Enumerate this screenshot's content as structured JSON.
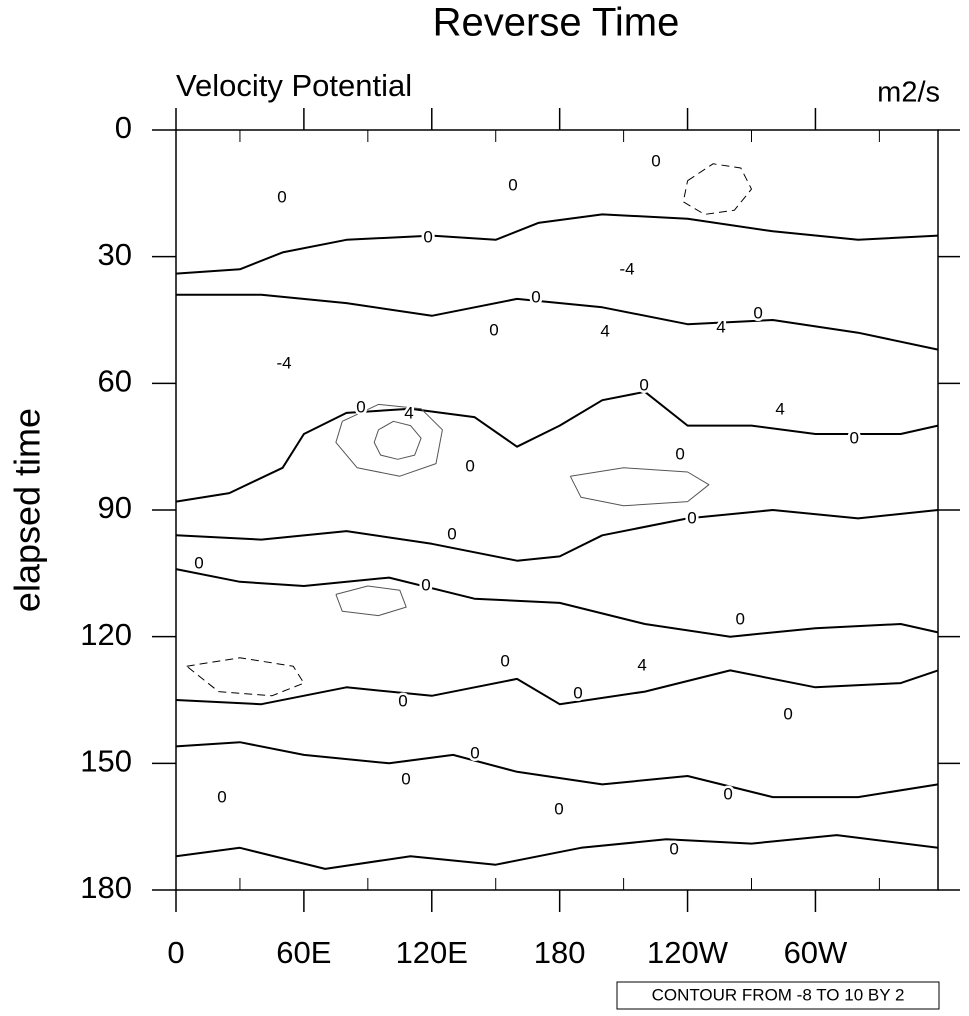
{
  "chart_data": {
    "type": "contour",
    "title": "Reverse Time",
    "left_label": "Velocity Potential",
    "right_label": "m2/s",
    "y_label": "elapsed time",
    "contour_info": "CONTOUR FROM -8 TO 10 BY 2",
    "xlim": [
      0,
      357.5
    ],
    "ylim": [
      0,
      180
    ],
    "y_reversed": true,
    "xticks": [
      0,
      {
        "value": 60,
        "label": "60E"
      },
      {
        "value": 120,
        "label": "120E"
      },
      180,
      {
        "value": 240,
        "label": "120W"
      },
      {
        "value": 300,
        "label": "60W"
      }
    ],
    "xminorticks": [
      30,
      90,
      150,
      210,
      270,
      330
    ],
    "yticks": [
      0,
      30,
      60,
      90,
      120,
      150,
      180
    ],
    "color": "#000000",
    "contours": [
      {
        "level": 0,
        "lon": [
          0,
          30,
          50,
          80,
          120,
          150,
          170,
          200,
          240,
          280,
          320,
          357.5
        ],
        "time": [
          34,
          33,
          29,
          26,
          25,
          26,
          22,
          20,
          21,
          24,
          26,
          25
        ]
      },
      {
        "level": 0,
        "lon": [
          0,
          40,
          80,
          120,
          160,
          200,
          240,
          280,
          320,
          357.5
        ],
        "time": [
          39,
          39,
          41,
          44,
          40,
          42,
          46,
          45,
          48,
          52
        ]
      },
      {
        "level": 0,
        "lon": [
          0,
          25,
          50,
          60,
          80,
          110,
          140,
          160,
          180,
          200,
          220,
          240,
          270,
          300,
          340,
          357.5
        ],
        "time": [
          88,
          86,
          80,
          72,
          67,
          66,
          68,
          75,
          70,
          64,
          62,
          70,
          70,
          72,
          72,
          70
        ]
      },
      {
        "level": 0,
        "lon": [
          0,
          40,
          80,
          120,
          160,
          180,
          200,
          240,
          280,
          320,
          357.5
        ],
        "time": [
          96,
          97,
          95,
          98,
          102,
          101,
          96,
          92,
          90,
          92,
          90
        ]
      },
      {
        "level": 0,
        "lon": [
          0,
          30,
          60,
          100,
          140,
          180,
          220,
          260,
          300,
          340,
          357.5
        ],
        "time": [
          104,
          107,
          108,
          106,
          111,
          112,
          117,
          120,
          118,
          117,
          119
        ]
      },
      {
        "level": 0,
        "lon": [
          0,
          40,
          80,
          120,
          160,
          180,
          220,
          260,
          300,
          340,
          357.5
        ],
        "time": [
          135,
          136,
          132,
          134,
          130,
          136,
          133,
          128,
          132,
          131,
          128
        ]
      },
      {
        "level": 0,
        "lon": [
          0,
          30,
          60,
          100,
          130,
          160,
          200,
          240,
          280,
          320,
          357.5
        ],
        "time": [
          146,
          145,
          148,
          150,
          148,
          152,
          155,
          153,
          158,
          158,
          155
        ]
      },
      {
        "level": 0,
        "lon": [
          0,
          30,
          70,
          110,
          150,
          190,
          230,
          270,
          310,
          357.5
        ],
        "time": [
          172,
          170,
          175,
          172,
          174,
          170,
          168,
          169,
          167,
          170
        ]
      },
      {
        "level": 4,
        "lon": [
          95,
          102,
          110,
          115,
          112,
          104,
          96,
          93,
          95
        ],
        "time": [
          71,
          69,
          70,
          73,
          77,
          78,
          77,
          74,
          71
        ]
      },
      {
        "level": 2,
        "lon": [
          78,
          95,
          115,
          125,
          122,
          105,
          85,
          75,
          78
        ],
        "time": [
          69,
          65,
          66,
          71,
          79,
          82,
          80,
          74,
          69
        ]
      },
      {
        "level": -2,
        "lon": [
          240,
          252,
          265,
          270,
          262,
          248,
          238,
          240
        ],
        "time": [
          12,
          8,
          9,
          14,
          19,
          20,
          17,
          12
        ]
      },
      {
        "level": 2,
        "lon": [
          185,
          210,
          240,
          250,
          240,
          210,
          190,
          185
        ],
        "time": [
          82,
          80,
          81,
          84,
          88,
          89,
          87,
          82
        ]
      },
      {
        "level": -2,
        "lon": [
          5,
          30,
          55,
          60,
          45,
          20,
          5
        ],
        "time": [
          127,
          125,
          127,
          131,
          134,
          133,
          127
        ]
      },
      {
        "level": 2,
        "lon": [
          75,
          90,
          105,
          108,
          95,
          78,
          75
        ],
        "time": [
          110,
          108,
          109,
          113,
          115,
          114,
          110
        ]
      }
    ],
    "contour_labels": [
      {
        "lon": 225.2,
        "time": 7.6,
        "value": 0
      },
      {
        "lon": 158.1,
        "time": 13.3,
        "value": 0
      },
      {
        "lon": 49.7,
        "time": 16.1,
        "value": 0
      },
      {
        "lon": 118.3,
        "time": 25.6,
        "value": 0
      },
      {
        "lon": 211.6,
        "time": 33.2,
        "value": -4
      },
      {
        "lon": 168.9,
        "time": 39.8,
        "value": 0
      },
      {
        "lon": 273.1,
        "time": 43.6,
        "value": 0
      },
      {
        "lon": 149.2,
        "time": 47.6,
        "value": 0
      },
      {
        "lon": 201.3,
        "time": 47.9,
        "value": 4
      },
      {
        "lon": 255.7,
        "time": 46.9,
        "value": 4
      },
      {
        "lon": 50.7,
        "time": 55.4,
        "value": -4
      },
      {
        "lon": 219.6,
        "time": 60.6,
        "value": 0
      },
      {
        "lon": 86.8,
        "time": 65.8,
        "value": 0
      },
      {
        "lon": 109.3,
        "time": 67.3,
        "value": 4
      },
      {
        "lon": 283.4,
        "time": 66.3,
        "value": 4
      },
      {
        "lon": 318.2,
        "time": 73.2,
        "value": 0
      },
      {
        "lon": 138.0,
        "time": 79.8,
        "value": 0
      },
      {
        "lon": 236.5,
        "time": 77.0,
        "value": 0
      },
      {
        "lon": 242.1,
        "time": 92.1,
        "value": 0
      },
      {
        "lon": 129.5,
        "time": 95.9,
        "value": 0
      },
      {
        "lon": 10.8,
        "time": 102.8,
        "value": 0
      },
      {
        "lon": 117.3,
        "time": 108.0,
        "value": 0
      },
      {
        "lon": 264.7,
        "time": 116.1,
        "value": 0
      },
      {
        "lon": 154.4,
        "time": 126.0,
        "value": 0
      },
      {
        "lon": 218.7,
        "time": 127.0,
        "value": 4
      },
      {
        "lon": 188.6,
        "time": 133.6,
        "value": 0
      },
      {
        "lon": 106.5,
        "time": 135.5,
        "value": 0
      },
      {
        "lon": 287.2,
        "time": 138.6,
        "value": 0
      },
      {
        "lon": 140.3,
        "time": 147.8,
        "value": 0
      },
      {
        "lon": 107.9,
        "time": 153.9,
        "value": 0
      },
      {
        "lon": 259.0,
        "time": 157.5,
        "value": 0
      },
      {
        "lon": 21.6,
        "time": 158.2,
        "value": 0
      },
      {
        "lon": 179.7,
        "time": 161.1,
        "value": 0
      },
      {
        "lon": 233.7,
        "time": 170.5,
        "value": 0
      }
    ]
  }
}
